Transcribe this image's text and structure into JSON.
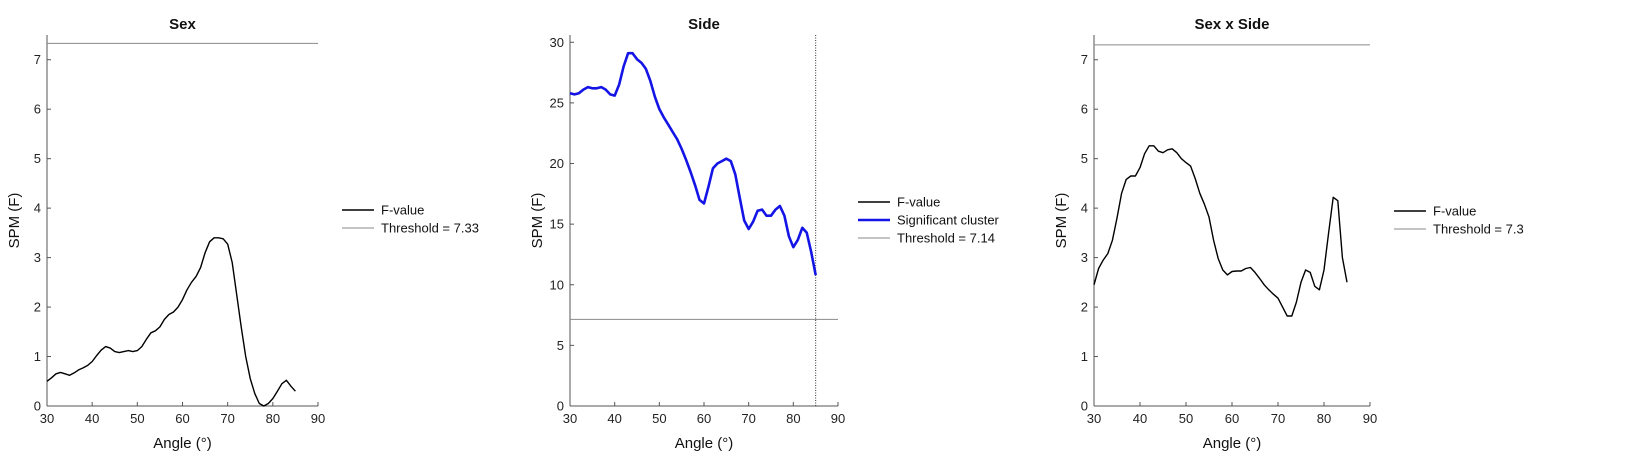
{
  "chart_data": [
    {
      "type": "line",
      "title": "Sex",
      "xlabel": "Angle (°)",
      "ylabel": "SPM (F)",
      "xlim": [
        30,
        90
      ],
      "ylim": [
        0,
        7.5
      ],
      "xticks": [
        "30",
        "40",
        "50",
        "60",
        "70",
        "80",
        "90"
      ],
      "yticks": [
        "0",
        "1",
        "2",
        "3",
        "4",
        "5",
        "6",
        "7"
      ],
      "legend_position": "right",
      "legend": [
        "F-value",
        "Threshold = 7.33"
      ],
      "threshold": 7.33,
      "series": [
        {
          "name": "F-value",
          "color": "#000000",
          "x": [
            30,
            31,
            32,
            33,
            34,
            35,
            36,
            37,
            38,
            39,
            40,
            41,
            42,
            43,
            44,
            45,
            46,
            47,
            48,
            49,
            50,
            51,
            52,
            53,
            54,
            55,
            56,
            57,
            58,
            59,
            60,
            61,
            62,
            63,
            64,
            65,
            66,
            67,
            68,
            69,
            70,
            71,
            72,
            73,
            74,
            75,
            76,
            77,
            78,
            79,
            80,
            81,
            82,
            83,
            84,
            85
          ],
          "y": [
            0.5,
            0.57,
            0.65,
            0.68,
            0.65,
            0.62,
            0.67,
            0.73,
            0.77,
            0.82,
            0.9,
            1.02,
            1.13,
            1.2,
            1.17,
            1.1,
            1.08,
            1.1,
            1.12,
            1.1,
            1.12,
            1.2,
            1.35,
            1.48,
            1.52,
            1.6,
            1.75,
            1.85,
            1.9,
            2.0,
            2.15,
            2.35,
            2.5,
            2.62,
            2.8,
            3.1,
            3.32,
            3.4,
            3.4,
            3.38,
            3.27,
            2.9,
            2.25,
            1.6,
            1.0,
            0.55,
            0.25,
            0.05,
            0.0,
            0.05,
            0.15,
            0.3,
            0.45,
            0.52,
            0.4,
            0.3
          ]
        }
      ]
    },
    {
      "type": "line",
      "title": "Side",
      "xlabel": "Angle (°)",
      "ylabel": "SPM (F)",
      "xlim": [
        30,
        90
      ],
      "ylim": [
        0,
        30.6
      ],
      "xticks": [
        "30",
        "40",
        "50",
        "60",
        "70",
        "80",
        "90"
      ],
      "yticks": [
        "0",
        "5",
        "10",
        "15",
        "20",
        "25",
        "30"
      ],
      "legend_position": "right",
      "legend": [
        "F-value",
        "Significant cluster",
        "Threshold = 7.14"
      ],
      "threshold": 7.14,
      "cluster_end": 85,
      "series": [
        {
          "name": "Significant cluster",
          "color": "#1414e6",
          "x": [
            30,
            31,
            32,
            33,
            34,
            35,
            36,
            37,
            38,
            39,
            40,
            41,
            42,
            43,
            44,
            45,
            46,
            47,
            48,
            49,
            50,
            51,
            52,
            53,
            54,
            55,
            56,
            57,
            58,
            59,
            60,
            61,
            62,
            63,
            64,
            65,
            66,
            67,
            68,
            69,
            70,
            71,
            72,
            73,
            74,
            75,
            76,
            77,
            78,
            79,
            80,
            81,
            82,
            83,
            84,
            85
          ],
          "y": [
            25.8,
            25.7,
            25.8,
            26.1,
            26.3,
            26.2,
            26.2,
            26.3,
            26.1,
            25.7,
            25.6,
            26.5,
            28.0,
            29.1,
            29.1,
            28.6,
            28.3,
            27.8,
            26.8,
            25.5,
            24.5,
            23.8,
            23.2,
            22.6,
            22.0,
            21.2,
            20.3,
            19.3,
            18.2,
            17.0,
            16.7,
            18.1,
            19.6,
            20.0,
            20.2,
            20.4,
            20.2,
            19.1,
            17.2,
            15.3,
            14.6,
            15.2,
            16.1,
            16.2,
            15.7,
            15.7,
            16.2,
            16.5,
            15.7,
            14.0,
            13.1,
            13.7,
            14.7,
            14.3,
            12.7,
            10.8
          ]
        }
      ]
    },
    {
      "type": "line",
      "title": "Sex x Side",
      "xlabel": "Angle (°)",
      "ylabel": "SPM (F)",
      "xlim": [
        30,
        90
      ],
      "ylim": [
        0,
        7.5
      ],
      "xticks": [
        "30",
        "40",
        "50",
        "60",
        "70",
        "80",
        "90"
      ],
      "yticks": [
        "0",
        "1",
        "2",
        "3",
        "4",
        "5",
        "6",
        "7"
      ],
      "legend_position": "right",
      "legend": [
        "F-value",
        "Threshold = 7.3"
      ],
      "threshold": 7.3,
      "series": [
        {
          "name": "F-value",
          "color": "#000000",
          "x": [
            30,
            31,
            32,
            33,
            34,
            35,
            36,
            37,
            38,
            39,
            40,
            41,
            42,
            43,
            44,
            45,
            46,
            47,
            48,
            49,
            50,
            51,
            52,
            53,
            54,
            55,
            56,
            57,
            58,
            59,
            60,
            61,
            62,
            63,
            64,
            65,
            66,
            67,
            68,
            69,
            70,
            71,
            72,
            73,
            74,
            75,
            76,
            77,
            78,
            79,
            80,
            81,
            82,
            83,
            84,
            85
          ],
          "y": [
            2.45,
            2.78,
            2.95,
            3.08,
            3.35,
            3.8,
            4.3,
            4.58,
            4.65,
            4.65,
            4.82,
            5.1,
            5.26,
            5.26,
            5.15,
            5.12,
            5.18,
            5.2,
            5.12,
            5.0,
            4.92,
            4.85,
            4.6,
            4.3,
            4.08,
            3.82,
            3.35,
            2.98,
            2.75,
            2.65,
            2.72,
            2.73,
            2.73,
            2.78,
            2.8,
            2.7,
            2.58,
            2.45,
            2.35,
            2.26,
            2.18,
            2.0,
            1.82,
            1.82,
            2.1,
            2.5,
            2.75,
            2.7,
            2.42,
            2.35,
            2.75,
            3.5,
            4.22,
            4.15,
            3.0,
            2.5
          ]
        }
      ]
    }
  ]
}
